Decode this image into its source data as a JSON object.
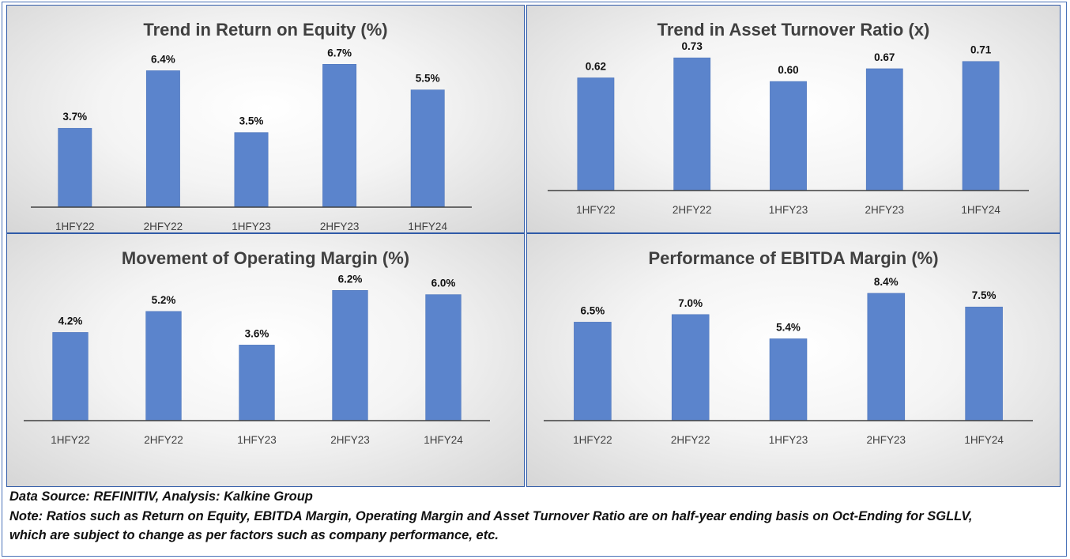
{
  "chart_data": [
    {
      "type": "bar",
      "title": "Trend in Return on Equity (%)",
      "categories": [
        "1HFY22",
        "2HFY22",
        "1HFY23",
        "2HFY23",
        "1HFY24"
      ],
      "values": [
        3.7,
        6.4,
        3.5,
        6.7,
        5.5
      ],
      "data_labels": [
        "3.7%",
        "6.4%",
        "3.5%",
        "6.7%",
        "5.5%"
      ],
      "ylim": [
        0,
        7.6
      ],
      "color": "#5b84cc",
      "grid": false
    },
    {
      "type": "bar",
      "title": "Trend in Asset Turnover Ratio (x)",
      "categories": [
        "1HFY22",
        "2HFY22",
        "1HFY23",
        "2HFY23",
        "1HFY24"
      ],
      "values": [
        0.62,
        0.73,
        0.6,
        0.67,
        0.71
      ],
      "data_labels": [
        "0.62",
        "0.73",
        "0.60",
        "0.67",
        "0.71"
      ],
      "ylim": [
        0,
        0.8
      ],
      "color": "#5b84cc",
      "grid": false
    },
    {
      "type": "bar",
      "title": "Movement of Operating Margin (%)",
      "categories": [
        "1HFY22",
        "2HFY22",
        "1HFY23",
        "2HFY23",
        "1HFY24"
      ],
      "values": [
        4.2,
        5.2,
        3.6,
        6.2,
        6.0
      ],
      "data_labels": [
        "4.2%",
        "5.2%",
        "3.6%",
        "6.2%",
        "6.0%"
      ],
      "ylim": [
        0,
        7
      ],
      "color": "#5b84cc",
      "grid": false
    },
    {
      "type": "bar",
      "title": "Performance of EBITDA Margin (%)",
      "categories": [
        "1HFY22",
        "2HFY22",
        "1HFY23",
        "2HFY23",
        "1HFY24"
      ],
      "values": [
        6.5,
        7.0,
        5.4,
        8.4,
        7.5
      ],
      "data_labels": [
        "6.5%",
        "7.0%",
        "5.4%",
        "8.4%",
        "7.5%"
      ],
      "ylim": [
        0,
        9.7
      ],
      "color": "#5b84cc",
      "grid": false
    }
  ],
  "footer": {
    "source": "Data Source: REFINITIV, Analysis: Kalkine Group",
    "note_line1": "Note: Ratios such as Return on Equity, EBITDA Margin, Operating Margin and Asset Turnover Ratio are on half-year ending basis on Oct-Ending for SGLLV,",
    "note_line2": "which are subject to change as per factors such as company performance, etc."
  }
}
